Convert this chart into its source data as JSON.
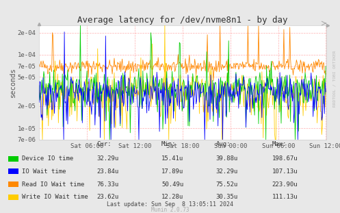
{
  "title": "Average latency for /dev/nvme8n1 - by day",
  "ylabel": "seconds",
  "xlabel_ticks": [
    "Sat 06:00",
    "Sat 12:00",
    "Sat 18:00",
    "Sun 00:00",
    "Sun 06:00",
    "Sun 12:00"
  ],
  "yticks": [
    7e-06,
    1e-05,
    2e-05,
    5e-05,
    7e-05,
    0.0001,
    0.0002
  ],
  "ytick_labels": [
    "7e-06",
    "1e-05",
    "2e-05",
    "5e-05",
    "7e-05",
    "1e-04",
    "2e-04"
  ],
  "series_colors": [
    "#00cc00",
    "#0000ff",
    "#ff8800",
    "#ffcc00"
  ],
  "series_labels": [
    "Device IO time",
    "IO Wait time",
    "Read IO Wait time",
    "Write IO Wait time"
  ],
  "legend_headers": [
    "Cur:",
    "Min:",
    "Avg:",
    "Max:"
  ],
  "legend_rows": [
    [
      "32.29u",
      "15.41u",
      "39.88u",
      "198.67u"
    ],
    [
      "23.84u",
      "17.89u",
      "32.29u",
      "107.13u"
    ],
    [
      "76.33u",
      "50.49u",
      "75.52u",
      "223.90u"
    ],
    [
      "23.62u",
      "12.28u",
      "30.35u",
      "111.13u"
    ]
  ],
  "footer": "Last update: Sun Sep  8 13:05:11 2024",
  "munin_version": "Munin 2.0.73",
  "bg_color": "#e8e8e8",
  "plot_bg_color": "#ffffff",
  "grid_color": "#ff9999",
  "watermark": "RRDTOOL / TOBI OETIKER",
  "ymin": 7e-06,
  "ymax": 0.00025
}
